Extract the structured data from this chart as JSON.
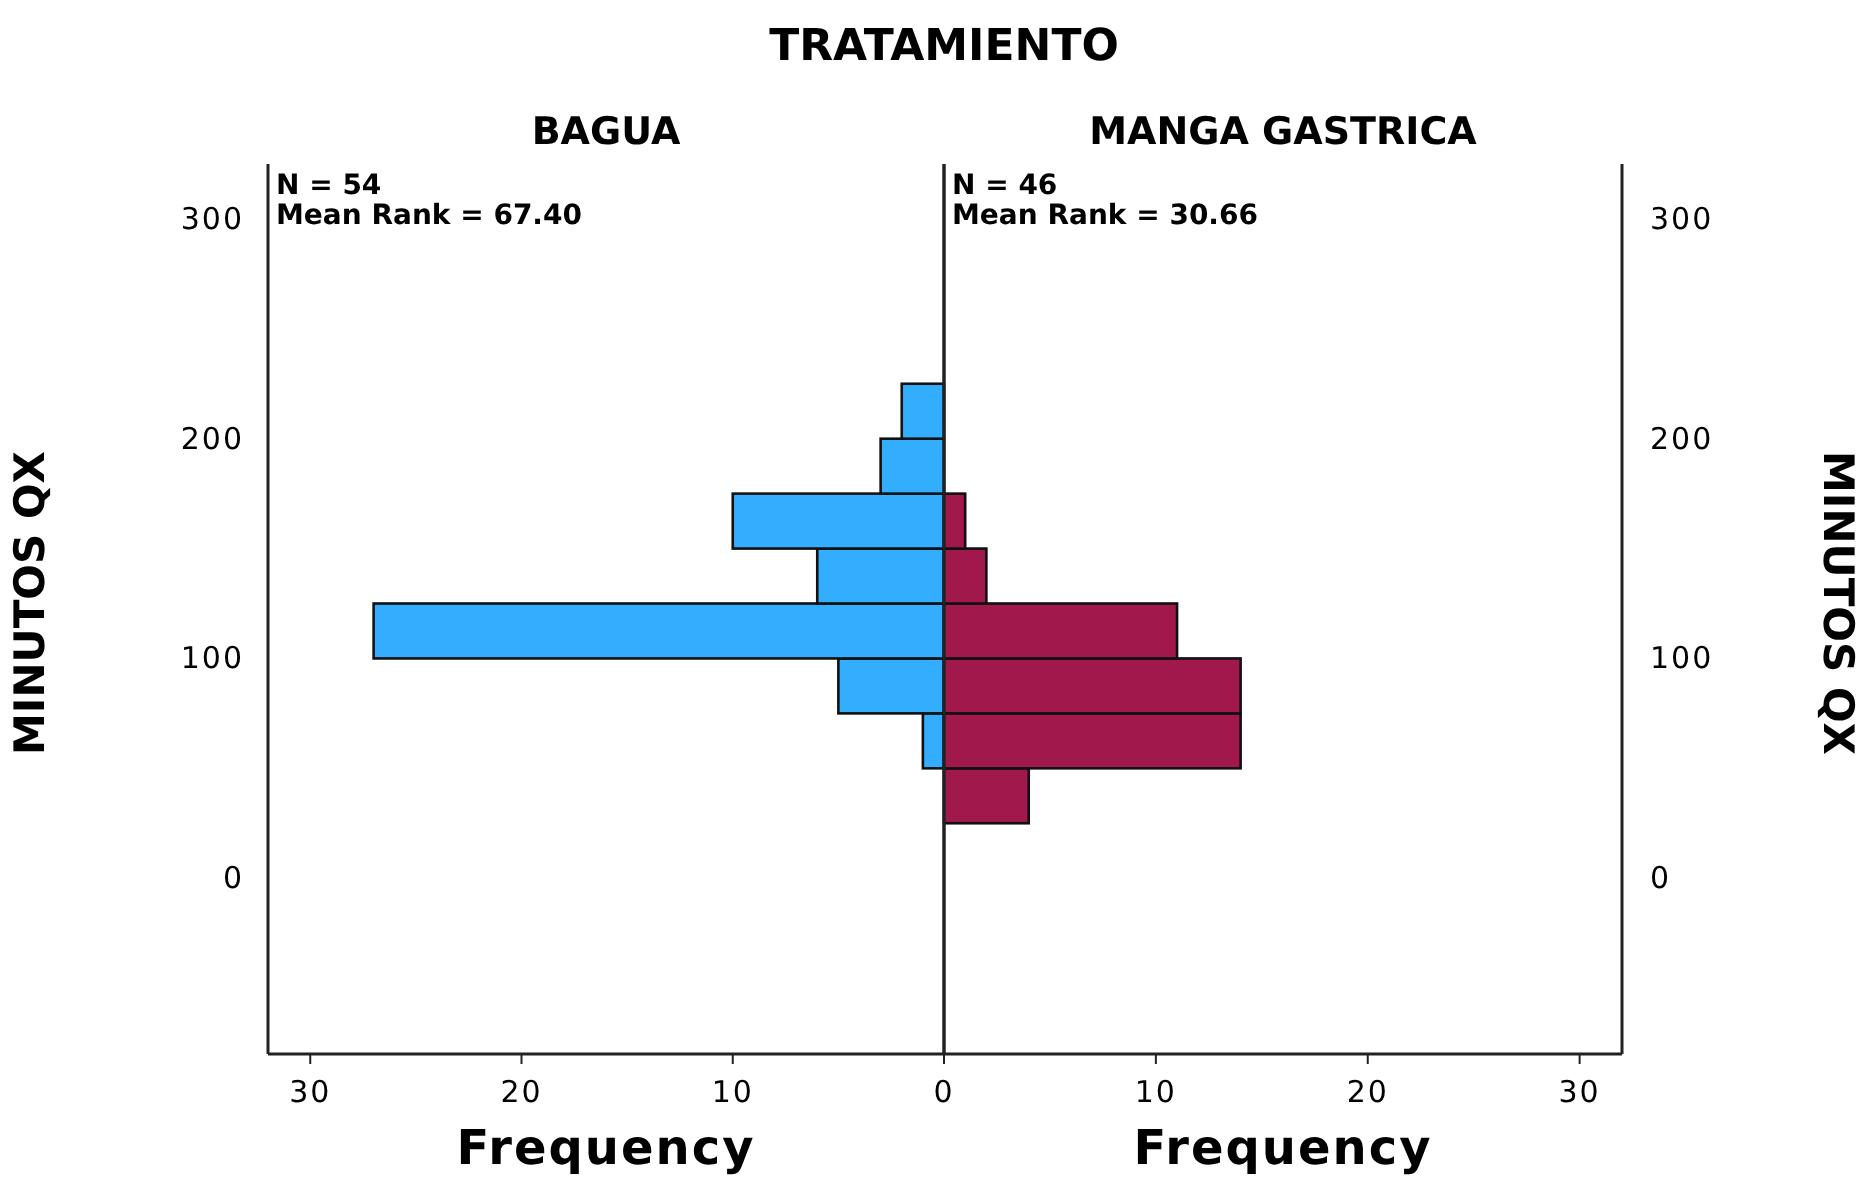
{
  "chart_data": [
    {
      "type": "histogram",
      "orientation": "horizontal",
      "title": "BAGUA",
      "annotations": [
        "TRATAMIENTO",
        "N = 54",
        "Mean Rank = 67.40"
      ],
      "xlabel": "Frequency",
      "ylabel": "MINUTOS QX",
      "bins": [
        25,
        50,
        75,
        100,
        125,
        150,
        175,
        200,
        225
      ],
      "values": [
        0,
        1,
        5,
        27,
        6,
        10,
        3,
        2
      ],
      "color": "#33aeff",
      "xlim": [
        32,
        0
      ],
      "xticks": [
        30,
        20,
        10
      ],
      "ylim": [
        -80,
        325
      ],
      "yticks": [
        0,
        100,
        200,
        300
      ],
      "grid": false
    },
    {
      "type": "histogram",
      "orientation": "horizontal",
      "title": "MANGA GASTRICA",
      "annotations": [
        "N = 46",
        "Mean Rank = 30.66"
      ],
      "xlabel": "Frequency",
      "ylabel": "MINUTOS QX",
      "bins": [
        25,
        50,
        75,
        100,
        125,
        150,
        175,
        200,
        225
      ],
      "values": [
        4,
        14,
        14,
        11,
        2,
        1,
        0,
        0
      ],
      "color": "#a0184c",
      "xlim": [
        0,
        32
      ],
      "xticks": [
        0,
        10,
        20,
        30
      ],
      "ylim": [
        -80,
        325
      ],
      "yticks": [
        0,
        100,
        200,
        300
      ],
      "grid": false
    }
  ]
}
